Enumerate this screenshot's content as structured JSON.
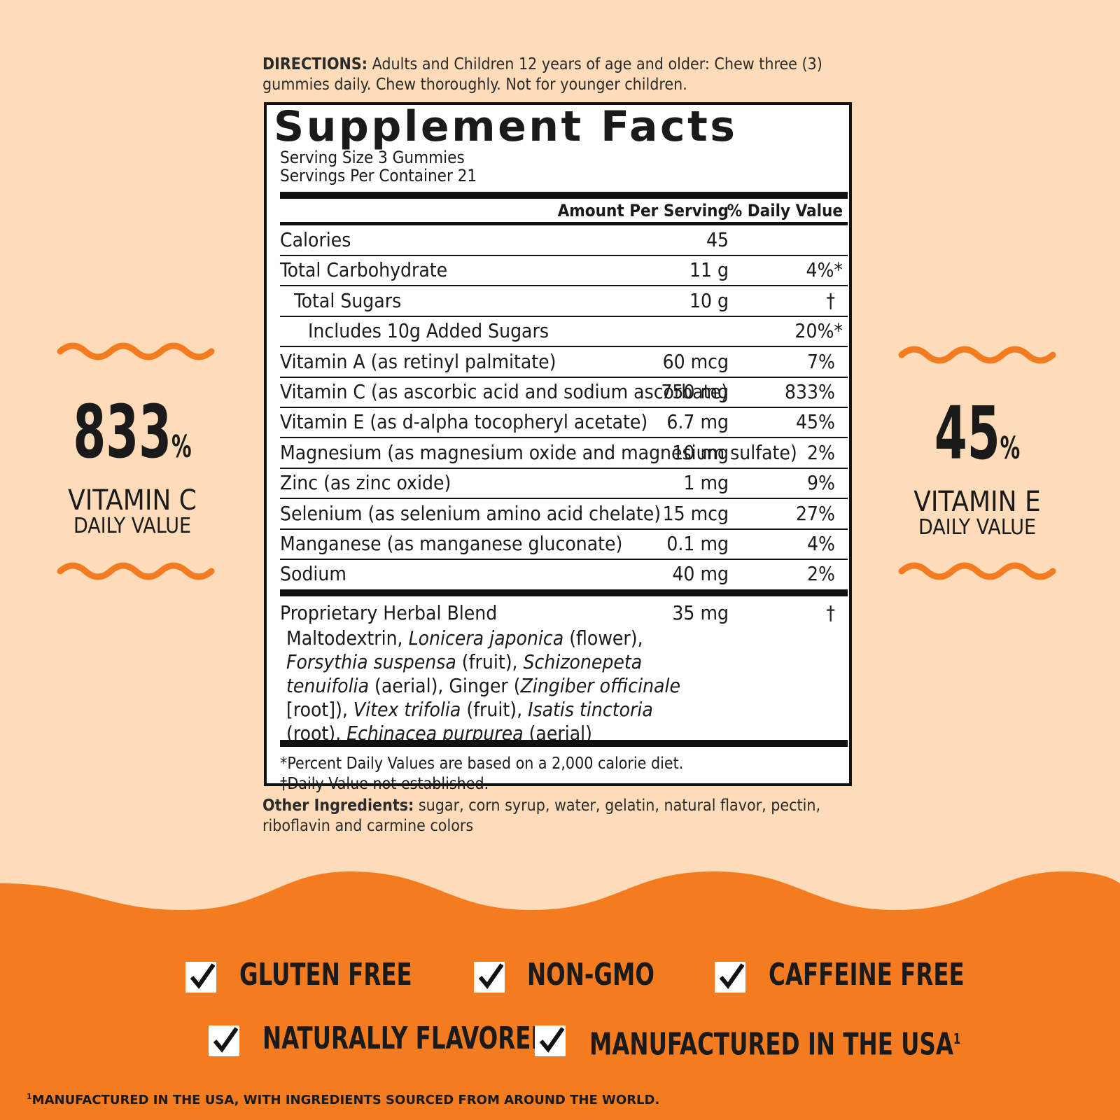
{
  "directions": {
    "label": "DIRECTIONS:",
    "text": "Adults and Children 12 years of age and older: Chew three (3) gummies daily. Chew thoroughly. Not for younger children."
  },
  "facts": {
    "title": "Supplement Facts",
    "serving_size": "Serving Size 3 Gummies",
    "servings_per_container": "Servings Per Container 21",
    "header": {
      "amount": "Amount Per Serving",
      "dv": "% Daily Value"
    },
    "rows": [
      {
        "nutrient": "Calories",
        "amount": "45"
      },
      {
        "nutrient": "Total Carbohydrate",
        "amount": "11 g",
        "dv": "4%*"
      },
      {
        "nutrient": "Total Sugars",
        "amount": "10 g",
        "dv": "†",
        "indent": 1
      },
      {
        "nutrient": "Includes 10g Added Sugars",
        "dv": "20%*",
        "indent": 2
      },
      {
        "nutrient": "Vitamin A (as retinyl palmitate)",
        "amount": "60 mcg",
        "dv": "7%"
      },
      {
        "nutrient": "Vitamin C (as ascorbic acid and sodium ascorbate)",
        "amount": "750 mg",
        "dv": "833%"
      },
      {
        "nutrient": "Vitamin E (as d-alpha tocopheryl acetate)",
        "amount": "6.7 mg",
        "dv": "45%"
      },
      {
        "nutrient": "Magnesium (as magnesium oxide and magnesium sulfate)",
        "amount": "10 mg",
        "dv": "2%"
      },
      {
        "nutrient": "Zinc (as zinc oxide)",
        "amount": "1 mg",
        "dv": "9%"
      },
      {
        "nutrient": "Selenium (as selenium amino acid chelate)",
        "amount": "15 mcg",
        "dv": "27%"
      },
      {
        "nutrient": "Manganese (as manganese gluconate)",
        "amount": "0.1 mg",
        "dv": "4%"
      },
      {
        "nutrient": "Sodium",
        "amount": "40 mg",
        "dv": "2%"
      }
    ],
    "blend": {
      "name": "Proprietary Herbal Blend",
      "amount": "35 mg",
      "dv": "†",
      "ingredients": [
        {
          "text": "Maltodextrin, "
        },
        {
          "text": "Lonicera japonica",
          "italic": true
        },
        {
          "text": " (flower), "
        },
        {
          "text": "Forsythia suspensa",
          "italic": true
        },
        {
          "text": " (fruit), "
        },
        {
          "text": "Schizonepeta tenuifolia",
          "italic": true
        },
        {
          "text": " (aerial), Ginger ("
        },
        {
          "text": "Zingiber officinale",
          "italic": true
        },
        {
          "text": " [root]), "
        },
        {
          "text": "Vitex trifolia",
          "italic": true
        },
        {
          "text": " (fruit), "
        },
        {
          "text": "Isatis tinctoria",
          "italic": true
        },
        {
          "text": " (root), "
        },
        {
          "text": "Echinacea purpurea",
          "italic": true
        },
        {
          "text": " (aerial)"
        }
      ]
    },
    "footnotes": [
      "*Percent Daily Values are based on a 2,000 calorie diet.",
      "†Daily Value not established."
    ]
  },
  "other_ingredients": {
    "label": "Other Ingredients:",
    "text": "sugar, corn syrup, water, gelatin, natural flavor, pectin, riboflavin and carmine colors"
  },
  "left_badge": {
    "value": "833",
    "unit": "%",
    "line1": "VITAMIN C",
    "line2": "DAILY VALUE"
  },
  "right_badge": {
    "value": "45",
    "unit": "%",
    "line1": "VITAMIN E",
    "line2": "DAILY VALUE"
  },
  "claims": [
    {
      "text": "GLUTEN FREE"
    },
    {
      "text": "NON-GMO"
    },
    {
      "text": "CAFFEINE FREE"
    },
    {
      "text": "NATURALLY FLAVORED"
    },
    {
      "text": "MANUFACTURED IN THE USA",
      "sup": "1"
    }
  ],
  "footnote": {
    "mark": "1",
    "text": "MANUFACTURED IN THE USA, WITH INGREDIENTS SOURCED FROM AROUND THE WORLD."
  }
}
